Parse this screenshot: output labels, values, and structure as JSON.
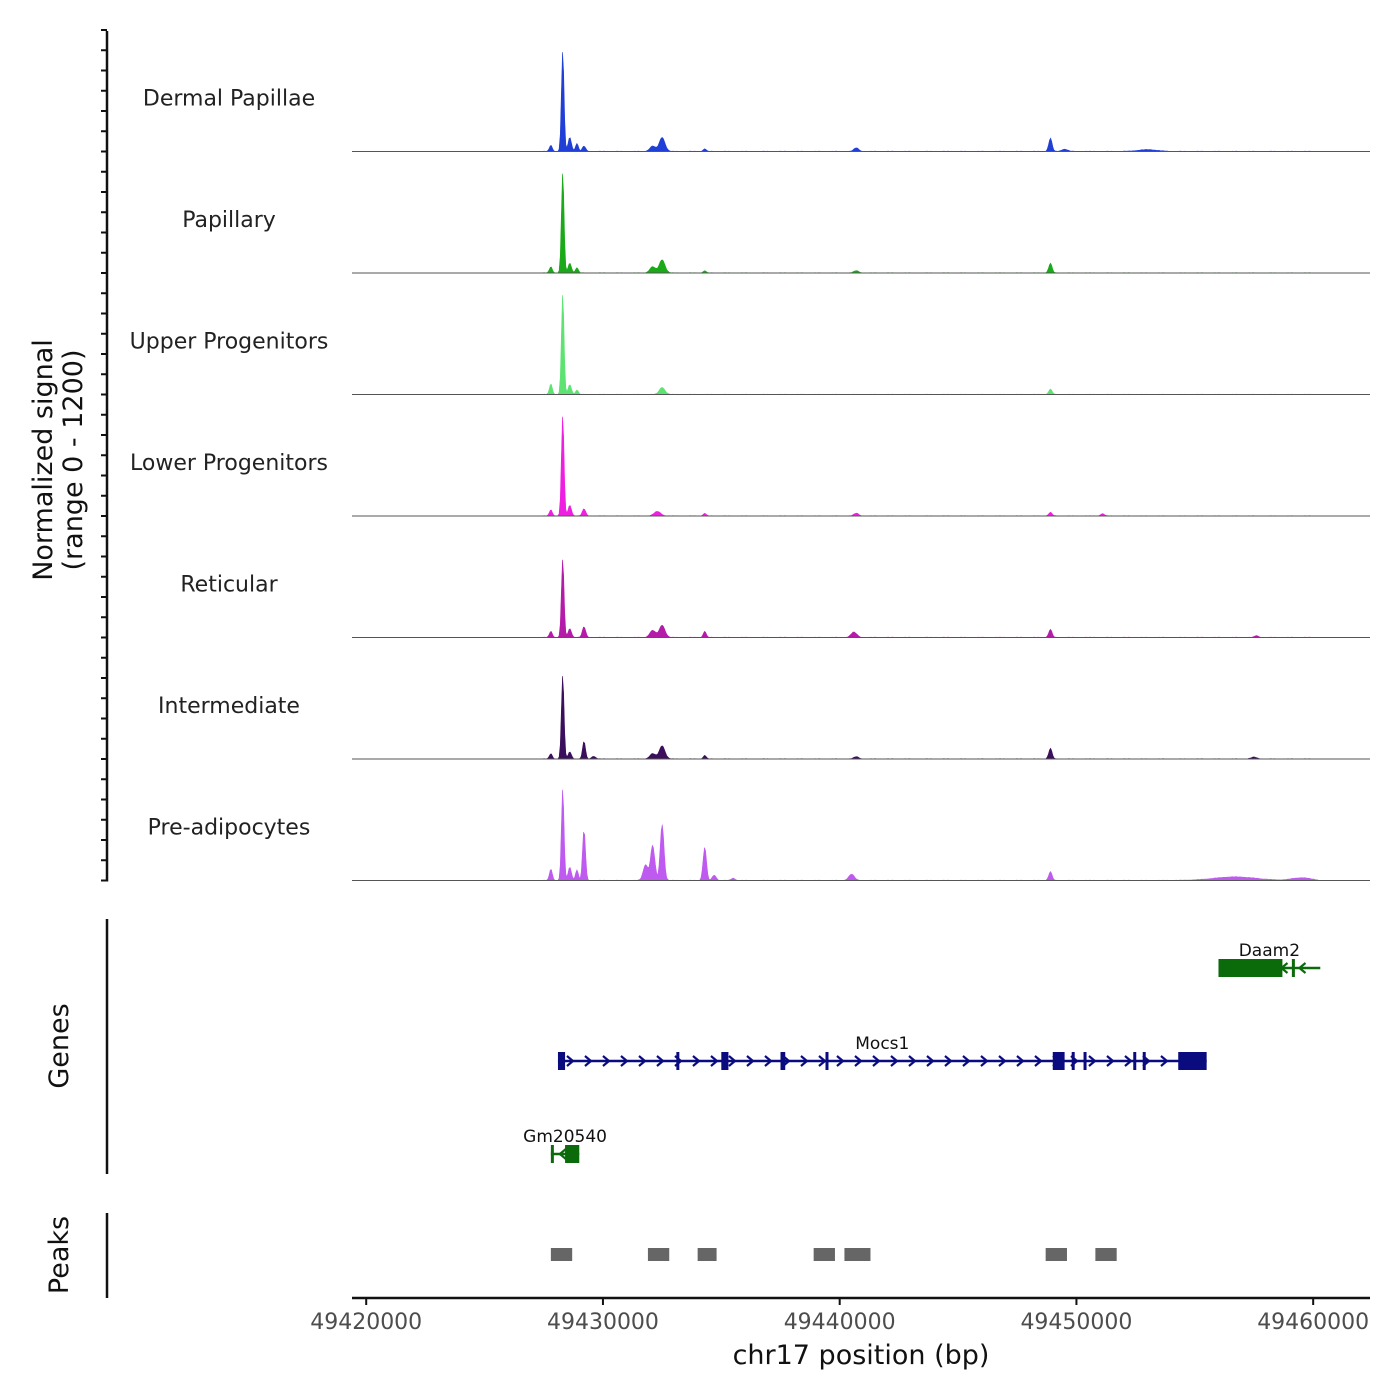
{
  "chart_data": {
    "type": "area",
    "title": "",
    "chromosome": "chr17",
    "xlabel": "chr17 position (bp)",
    "xlim": [
      49419400,
      49462400
    ],
    "x_ticks": [
      49420000,
      49430000,
      49440000,
      49450000,
      49460000
    ],
    "x_tick_labels": [
      "49420000",
      "49430000",
      "49440000",
      "49450000",
      "49460000"
    ],
    "ylabel_line1": "Normalized signal",
    "ylabel_line2": "(range 0 - 1200)",
    "ylim": [
      0,
      1200
    ],
    "coverage_tracks": [
      {
        "name": "Dermal Papillae",
        "color": "#1f3fd6",
        "peaks": [
          {
            "pos": 49427800,
            "h": 70,
            "w": 60
          },
          {
            "pos": 49428300,
            "h": 1150,
            "w": 55
          },
          {
            "pos": 49428600,
            "h": 160,
            "w": 70
          },
          {
            "pos": 49428900,
            "h": 90,
            "w": 60
          },
          {
            "pos": 49429200,
            "h": 60,
            "w": 70
          },
          {
            "pos": 49432100,
            "h": 60,
            "w": 120
          },
          {
            "pos": 49432500,
            "h": 160,
            "w": 120
          },
          {
            "pos": 49434300,
            "h": 30,
            "w": 60
          },
          {
            "pos": 49440700,
            "h": 40,
            "w": 100
          },
          {
            "pos": 49448900,
            "h": 150,
            "w": 70
          },
          {
            "pos": 49449500,
            "h": 25,
            "w": 120
          },
          {
            "pos": 49453000,
            "h": 20,
            "w": 400
          }
        ]
      },
      {
        "name": "Papillary",
        "color": "#1aa918",
        "peaks": [
          {
            "pos": 49427800,
            "h": 70,
            "w": 60
          },
          {
            "pos": 49428300,
            "h": 1150,
            "w": 55
          },
          {
            "pos": 49428600,
            "h": 110,
            "w": 70
          },
          {
            "pos": 49428900,
            "h": 60,
            "w": 60
          },
          {
            "pos": 49432100,
            "h": 70,
            "w": 120
          },
          {
            "pos": 49432500,
            "h": 150,
            "w": 120
          },
          {
            "pos": 49434300,
            "h": 25,
            "w": 60
          },
          {
            "pos": 49440700,
            "h": 25,
            "w": 100
          },
          {
            "pos": 49448900,
            "h": 110,
            "w": 70
          }
        ]
      },
      {
        "name": "Upper Progenitors",
        "color": "#5ee373",
        "peaks": [
          {
            "pos": 49427800,
            "h": 120,
            "w": 60
          },
          {
            "pos": 49428300,
            "h": 1150,
            "w": 55
          },
          {
            "pos": 49428600,
            "h": 110,
            "w": 70
          },
          {
            "pos": 49428900,
            "h": 50,
            "w": 60
          },
          {
            "pos": 49432500,
            "h": 80,
            "w": 120
          },
          {
            "pos": 49448900,
            "h": 60,
            "w": 70
          }
        ]
      },
      {
        "name": "Lower Progenitors",
        "color": "#ee1fe0",
        "peaks": [
          {
            "pos": 49427800,
            "h": 70,
            "w": 60
          },
          {
            "pos": 49428300,
            "h": 1150,
            "w": 55
          },
          {
            "pos": 49428600,
            "h": 120,
            "w": 70
          },
          {
            "pos": 49429200,
            "h": 80,
            "w": 70
          },
          {
            "pos": 49432300,
            "h": 50,
            "w": 140
          },
          {
            "pos": 49434300,
            "h": 30,
            "w": 60
          },
          {
            "pos": 49440700,
            "h": 30,
            "w": 100
          },
          {
            "pos": 49448900,
            "h": 40,
            "w": 70
          },
          {
            "pos": 49451100,
            "h": 25,
            "w": 80
          }
        ]
      },
      {
        "name": "Reticular",
        "color": "#b41ba8",
        "peaks": [
          {
            "pos": 49427800,
            "h": 70,
            "w": 60
          },
          {
            "pos": 49428300,
            "h": 900,
            "w": 55
          },
          {
            "pos": 49428600,
            "h": 100,
            "w": 70
          },
          {
            "pos": 49429200,
            "h": 120,
            "w": 70
          },
          {
            "pos": 49432100,
            "h": 80,
            "w": 120
          },
          {
            "pos": 49432500,
            "h": 140,
            "w": 120
          },
          {
            "pos": 49434300,
            "h": 70,
            "w": 60
          },
          {
            "pos": 49440600,
            "h": 60,
            "w": 120
          },
          {
            "pos": 49448900,
            "h": 90,
            "w": 70
          },
          {
            "pos": 49457600,
            "h": 20,
            "w": 80
          }
        ]
      },
      {
        "name": "Intermediate",
        "color": "#3b0f5c",
        "peaks": [
          {
            "pos": 49427800,
            "h": 60,
            "w": 60
          },
          {
            "pos": 49428300,
            "h": 960,
            "w": 55
          },
          {
            "pos": 49428600,
            "h": 80,
            "w": 70
          },
          {
            "pos": 49429200,
            "h": 200,
            "w": 60
          },
          {
            "pos": 49429600,
            "h": 30,
            "w": 80
          },
          {
            "pos": 49432100,
            "h": 60,
            "w": 120
          },
          {
            "pos": 49432500,
            "h": 150,
            "w": 120
          },
          {
            "pos": 49434300,
            "h": 40,
            "w": 60
          },
          {
            "pos": 49440700,
            "h": 25,
            "w": 100
          },
          {
            "pos": 49448900,
            "h": 120,
            "w": 70
          },
          {
            "pos": 49457500,
            "h": 20,
            "w": 120
          }
        ]
      },
      {
        "name": "Pre-adipocytes",
        "color": "#bf5af0",
        "peaks": [
          {
            "pos": 49424000,
            "h": 40,
            "w": 100
          },
          {
            "pos": 49427800,
            "h": 130,
            "w": 60
          },
          {
            "pos": 49428300,
            "h": 1050,
            "w": 55
          },
          {
            "pos": 49428600,
            "h": 150,
            "w": 70
          },
          {
            "pos": 49428900,
            "h": 120,
            "w": 60
          },
          {
            "pos": 49429200,
            "h": 580,
            "w": 60
          },
          {
            "pos": 49431800,
            "h": 180,
            "w": 100
          },
          {
            "pos": 49432100,
            "h": 400,
            "w": 90
          },
          {
            "pos": 49432500,
            "h": 640,
            "w": 80
          },
          {
            "pos": 49434300,
            "h": 380,
            "w": 70
          },
          {
            "pos": 49434700,
            "h": 60,
            "w": 80
          },
          {
            "pos": 49435500,
            "h": 25,
            "w": 80
          },
          {
            "pos": 49440500,
            "h": 70,
            "w": 120
          },
          {
            "pos": 49448900,
            "h": 100,
            "w": 70
          },
          {
            "pos": 49456700,
            "h": 40,
            "w": 900
          },
          {
            "pos": 49459500,
            "h": 30,
            "w": 400
          }
        ]
      }
    ],
    "genes_track": {
      "label": "Genes",
      "genes": [
        {
          "name": "Daam2",
          "strand": "-",
          "color": "#0b6b0b",
          "start": 49456000,
          "end": 49460300,
          "row": 0,
          "exons": [
            [
              49456000,
              49458700
            ],
            [
              49459100,
              49459200
            ]
          ]
        },
        {
          "name": "Mocs1",
          "strand": "+",
          "color": "#0b0b80",
          "start": 49428100,
          "end": 49455500,
          "row": 1,
          "exons": [
            [
              49428100,
              49428400
            ],
            [
              49433100,
              49433200
            ],
            [
              49435000,
              49435300
            ],
            [
              49437500,
              49437700
            ],
            [
              49439400,
              49439500
            ],
            [
              49449000,
              49449500
            ],
            [
              49449800,
              49449900
            ],
            [
              49450300,
              49450400
            ],
            [
              49452400,
              49452500
            ],
            [
              49452800,
              49452850
            ],
            [
              49454300,
              49455500
            ]
          ]
        },
        {
          "name": "Gm20540",
          "strand": "-",
          "color": "#0b6b0b",
          "start": 49427800,
          "end": 49429000,
          "row": 2,
          "exons": [
            [
              49427800,
              49427900
            ],
            [
              49428400,
              49429000
            ]
          ]
        }
      ]
    },
    "peaks_track": {
      "label": "Peaks",
      "color": "#666666",
      "regions": [
        [
          49427800,
          49428700
        ],
        [
          49431900,
          49432800
        ],
        [
          49434000,
          49434800
        ],
        [
          49438900,
          49439800
        ],
        [
          49440200,
          49441300
        ],
        [
          49448700,
          49449600
        ],
        [
          49450800,
          49451700
        ]
      ]
    }
  }
}
